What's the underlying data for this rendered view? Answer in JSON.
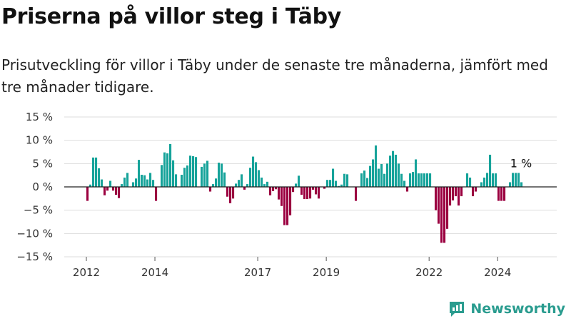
{
  "title": "Priserna på villor steg i Täby",
  "subtitle": "Prisutveckling för villor i Täby under de senaste tre månaderna, jämfört med tre månader tidigare.",
  "brand": "Newsworthy",
  "colors": {
    "positive": "#16a39a",
    "negative": "#9b0040",
    "grid": "#dddddd",
    "zero": "#222222",
    "brand": "#2a9c8f"
  },
  "chart_data": {
    "type": "bar",
    "ylim": [
      -15,
      15
    ],
    "y_ticks": [
      15,
      10,
      5,
      0,
      -5,
      -10,
      -15
    ],
    "y_tick_labels": [
      "15 %",
      "10 %",
      "5 %",
      "0 %",
      "−5 %",
      "−10 %",
      "−15 %"
    ],
    "x_ticks": [
      2012,
      2014,
      2017,
      2019,
      2022,
      2024
    ],
    "x_tick_labels": [
      "2012",
      "2014",
      "2017",
      "2019",
      "2022",
      "2024"
    ],
    "x_start": 2012.0,
    "x_step": 0.0833,
    "values": [
      -3,
      0.5,
      6.3,
      6.3,
      4,
      1.6,
      -1.8,
      -0.8,
      1.3,
      -0.8,
      -1.7,
      -2.4,
      0.6,
      2,
      3,
      0,
      1,
      1.8,
      5.8,
      2.6,
      2.5,
      1.6,
      3,
      1.5,
      -3,
      0,
      4.7,
      7.4,
      7.2,
      9.2,
      5.7,
      2.7,
      0,
      2.6,
      4.1,
      4.6,
      6.7,
      6.6,
      6.4,
      0,
      4.3,
      5,
      5.6,
      -1,
      0.6,
      1.8,
      5.2,
      5,
      3.1,
      -2.1,
      -3.5,
      -2.5,
      0.7,
      1.5,
      2.7,
      -0.6,
      0.6,
      4.1,
      6.5,
      5.3,
      3.6,
      2,
      0.6,
      1.1,
      -1.8,
      -0.9,
      -0.5,
      -2.7,
      -4.1,
      -8.2,
      -8.2,
      -6.1,
      -1.1,
      0.7,
      2.4,
      -1.7,
      -2.6,
      -2.6,
      -2.5,
      -0.6,
      -1.6,
      -2.5,
      0,
      -0.4,
      1.5,
      1.5,
      3.9,
      1.3,
      0.2,
      0.5,
      2.8,
      2.7,
      0,
      0,
      -3,
      0,
      2.9,
      3.5,
      1.9,
      4.5,
      5.9,
      8.9,
      3.9,
      4.9,
      2.8,
      5,
      6.7,
      7.7,
      6.9,
      5,
      2.8,
      1.3,
      -1,
      2.9,
      3.2,
      5.9,
      2.9,
      2.9,
      2.9,
      2.9,
      2.9,
      0,
      -5,
      -7.9,
      -12,
      -12,
      -9,
      -4,
      -2.9,
      -2,
      -4,
      -2,
      0,
      2.9,
      2,
      -2,
      -1,
      0,
      1,
      2,
      3,
      6.9,
      2.9,
      2.9,
      -3,
      -3,
      -3,
      0,
      1,
      3,
      3,
      3,
      1
    ],
    "annotation": "1 %"
  }
}
